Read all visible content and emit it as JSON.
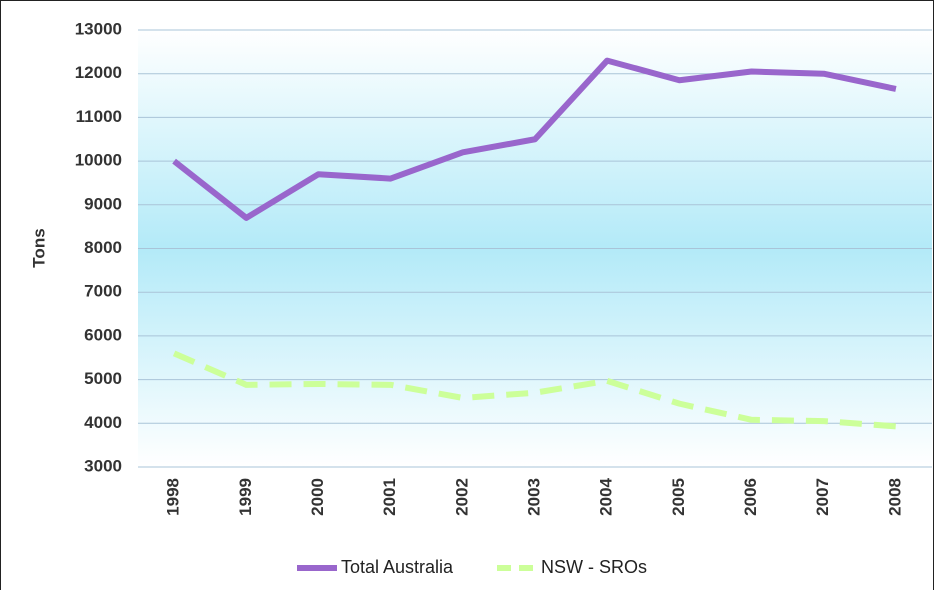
{
  "chart_data": {
    "type": "line",
    "y_label": "Tons",
    "categories": [
      "1998",
      "1999",
      "2000",
      "2001",
      "2002",
      "2003",
      "2004",
      "2005",
      "2006",
      "2007",
      "2008"
    ],
    "series": [
      {
        "name": "Total Australia",
        "color": "#9966cc",
        "dash": false,
        "values": [
          10000,
          8700,
          9700,
          9600,
          10200,
          10500,
          12300,
          11850,
          12050,
          12000,
          11650
        ]
      },
      {
        "name": "NSW - SROs",
        "color": "#ccff99",
        "dash": true,
        "values": [
          5600,
          4880,
          4900,
          4880,
          4580,
          4700,
          4970,
          4450,
          4080,
          4050,
          3930
        ]
      }
    ],
    "ylim": [
      3000,
      13000
    ],
    "yticks": [
      3000,
      4000,
      5000,
      6000,
      7000,
      8000,
      9000,
      10000,
      11000,
      12000,
      13000
    ],
    "grid": true,
    "legend": "bottom"
  }
}
